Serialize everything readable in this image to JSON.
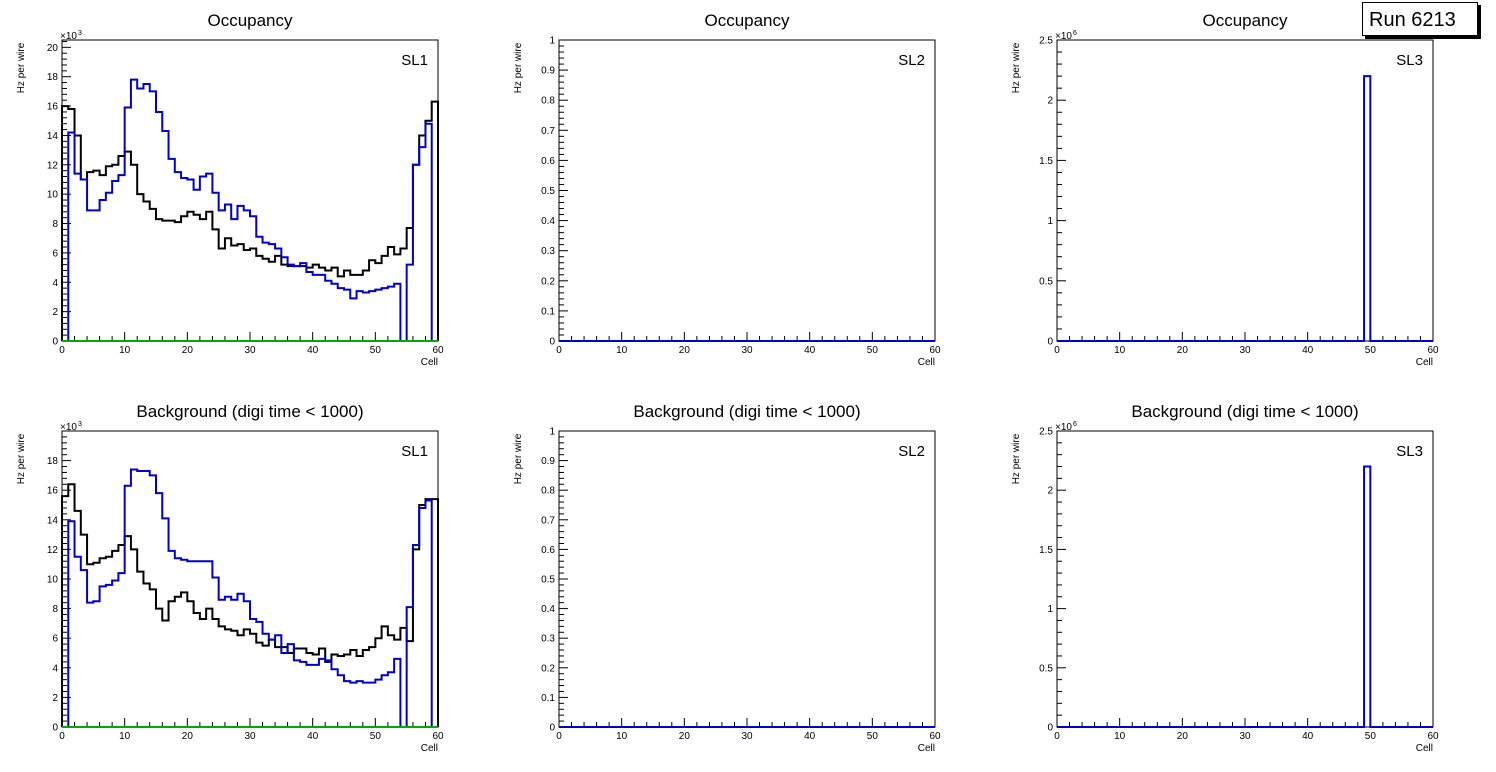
{
  "run_label": "Run 6213",
  "colors": {
    "black": "#000000",
    "blue": "#0000cc",
    "green": "#00aa00"
  },
  "chart_data": [
    {
      "id": "occ-sl1",
      "type": "histogram",
      "title": "Occupancy",
      "label": "SL1",
      "xlabel": "Cell",
      "ylabel": "Hz per wire",
      "xlim": [
        0,
        60
      ],
      "ylim": [
        0,
        20.5
      ],
      "exponent": "3",
      "xticks": [
        0,
        10,
        20,
        30,
        40,
        50,
        60
      ],
      "yticks": [
        0,
        2,
        4,
        6,
        8,
        10,
        12,
        14,
        16,
        18,
        20
      ],
      "series": [
        {
          "name": "black",
          "color": "#000000",
          "xstart": 0,
          "binwidth": 1,
          "values": [
            16,
            15.8,
            14,
            11,
            11.5,
            11.6,
            11.3,
            11.9,
            12,
            12.6,
            12.9,
            12,
            10,
            9.5,
            9,
            8.3,
            8.2,
            8.2,
            8.1,
            8.5,
            8.8,
            8.6,
            8.3,
            8.8,
            7.6,
            6.3,
            7,
            6.5,
            6.6,
            6.2,
            6.3,
            5.8,
            5.6,
            5.4,
            5.8,
            5.2,
            5.1,
            5.1,
            5.1,
            5,
            5.2,
            5,
            4.8,
            5,
            4.4,
            4.8,
            4.5,
            4.5,
            4.8,
            5.5,
            5.3,
            5.8,
            6.4,
            5.9,
            6.3,
            7.7,
            12,
            14,
            15,
            16.3
          ]
        },
        {
          "name": "blue",
          "color": "#0000cc",
          "xstart": 0,
          "binwidth": 1,
          "values": [
            0,
            14.2,
            11.4,
            11,
            8.9,
            8.9,
            9.6,
            10.1,
            10.9,
            11.3,
            15.9,
            17.8,
            17.2,
            17.5,
            17,
            15.6,
            14.3,
            12.4,
            11.5,
            11.1,
            11,
            10.3,
            11.2,
            11.4,
            10.1,
            8.9,
            9.3,
            8.3,
            9.2,
            8.9,
            8.5,
            7.1,
            6.7,
            6.6,
            6.3,
            5.7,
            5.2,
            5.1,
            5.3,
            4.7,
            4.5,
            4.5,
            4.1,
            3.9,
            3.6,
            3.5,
            2.9,
            3.4,
            3.3,
            3.4,
            3.5,
            3.6,
            3.7,
            3.9,
            0,
            5.2,
            12,
            13.2,
            14.8,
            0
          ]
        },
        {
          "name": "green",
          "color": "#00aa00",
          "xstart": 0,
          "binwidth": 1,
          "values": [
            0,
            0,
            0,
            0,
            0,
            0,
            0,
            0,
            0,
            0,
            0,
            0,
            0,
            0,
            0,
            0,
            0,
            0,
            0,
            0,
            0,
            0,
            0,
            0,
            0,
            0,
            0,
            0,
            0,
            0,
            0,
            0,
            0,
            0,
            0,
            0,
            0,
            0,
            0,
            0,
            0,
            0,
            0,
            0,
            0,
            0,
            0,
            0,
            0,
            0,
            0,
            0,
            0,
            0,
            0,
            0,
            0,
            0,
            0,
            0
          ]
        }
      ]
    },
    {
      "id": "occ-sl2",
      "type": "histogram",
      "title": "Occupancy",
      "label": "SL2",
      "xlabel": "Cell",
      "ylabel": "Hz per wire",
      "xlim": [
        0,
        60
      ],
      "ylim": [
        0,
        1
      ],
      "exponent": "",
      "xticks": [
        0,
        10,
        20,
        30,
        40,
        50,
        60
      ],
      "yticks": [
        0,
        0.1,
        0.2,
        0.3,
        0.4,
        0.5,
        0.6,
        0.7,
        0.8,
        0.9,
        1
      ],
      "series": [
        {
          "name": "blue",
          "color": "#0000cc",
          "xstart": 0,
          "binwidth": 1,
          "values": [
            0,
            0,
            0,
            0,
            0,
            0,
            0,
            0,
            0,
            0,
            0,
            0,
            0,
            0,
            0,
            0,
            0,
            0,
            0,
            0,
            0,
            0,
            0,
            0,
            0,
            0,
            0,
            0,
            0,
            0,
            0,
            0,
            0,
            0,
            0,
            0,
            0,
            0,
            0,
            0,
            0,
            0,
            0,
            0,
            0,
            0,
            0,
            0,
            0,
            0,
            0,
            0,
            0,
            0,
            0,
            0,
            0,
            0,
            0,
            0
          ]
        }
      ]
    },
    {
      "id": "occ-sl3",
      "type": "histogram",
      "title": "Occupancy",
      "label": "SL3",
      "xlabel": "Cell",
      "ylabel": "Hz per wire",
      "xlim": [
        0,
        60
      ],
      "ylim": [
        0,
        2.5
      ],
      "exponent": "6",
      "xticks": [
        0,
        10,
        20,
        30,
        40,
        50,
        60
      ],
      "yticks": [
        0,
        0.5,
        1,
        1.5,
        2,
        2.5
      ],
      "series": [
        {
          "name": "blue",
          "color": "#0000cc",
          "xstart": 0,
          "binwidth": 1,
          "values": [
            0,
            0,
            0,
            0,
            0,
            0,
            0,
            0,
            0,
            0,
            0,
            0,
            0,
            0,
            0,
            0,
            0,
            0,
            0,
            0,
            0,
            0,
            0,
            0,
            0,
            0,
            0,
            0,
            0,
            0,
            0,
            0,
            0,
            0,
            0,
            0,
            0,
            0,
            0,
            0,
            0,
            0,
            0,
            0,
            0,
            0,
            0,
            0,
            0,
            2.2,
            0,
            0,
            0,
            0,
            0,
            0,
            0,
            0,
            0,
            0
          ]
        }
      ]
    },
    {
      "id": "bkg-sl1",
      "type": "histogram",
      "title": "Background (digi time < 1000)",
      "label": "SL1",
      "xlabel": "Cell",
      "ylabel": "Hz per wire",
      "xlim": [
        0,
        60
      ],
      "ylim": [
        0,
        20
      ],
      "exponent": "3",
      "xticks": [
        0,
        10,
        20,
        30,
        40,
        50,
        60
      ],
      "yticks": [
        0,
        2,
        4,
        6,
        8,
        10,
        12,
        14,
        16,
        18
      ],
      "series": [
        {
          "name": "black",
          "color": "#000000",
          "xstart": 0,
          "binwidth": 1,
          "values": [
            15.6,
            16.4,
            14.6,
            13,
            11,
            11.1,
            11.4,
            11.5,
            11.9,
            12.3,
            12.9,
            12,
            10.5,
            9.7,
            9.3,
            8,
            7.2,
            8.5,
            8.8,
            9.1,
            8.5,
            7.7,
            7.3,
            8,
            7.3,
            6.8,
            6.6,
            6.5,
            6.2,
            6.6,
            6.3,
            5.7,
            5.5,
            5.9,
            5.4,
            5.4,
            5,
            5.3,
            5.3,
            5,
            4.9,
            5.3,
            4.4,
            4.9,
            4.8,
            4.9,
            5.2,
            4.8,
            5.2,
            5.4,
            6,
            6.8,
            6.2,
            5.9,
            6.7,
            5.8,
            12,
            15,
            15.4,
            15.4
          ]
        },
        {
          "name": "blue",
          "color": "#0000cc",
          "xstart": 0,
          "binwidth": 1,
          "values": [
            0,
            13.9,
            11.5,
            10.6,
            8.4,
            8.5,
            9.5,
            9.6,
            9.9,
            10.4,
            16.3,
            17.4,
            17.3,
            17.3,
            17,
            15.8,
            14.1,
            11.9,
            11.4,
            11.3,
            11.2,
            11.2,
            11.2,
            11.2,
            10.1,
            8.6,
            8.8,
            8.6,
            9,
            8.5,
            7.3,
            7.1,
            6.3,
            5.9,
            6.2,
            5,
            5.6,
            4.5,
            4.4,
            4.2,
            4.2,
            4.6,
            4.5,
            3.9,
            3.5,
            3.1,
            3,
            3.1,
            3,
            3,
            3.2,
            3.5,
            3.7,
            4.6,
            0,
            8.1,
            12.3,
            14.8,
            15.3,
            0
          ]
        },
        {
          "name": "green",
          "color": "#00aa00",
          "xstart": 0,
          "binwidth": 1,
          "values": [
            0,
            0,
            0,
            0,
            0,
            0,
            0,
            0,
            0,
            0,
            0,
            0,
            0,
            0,
            0,
            0,
            0,
            0,
            0,
            0,
            0,
            0,
            0,
            0,
            0,
            0,
            0,
            0,
            0,
            0,
            0,
            0,
            0,
            0,
            0,
            0,
            0,
            0,
            0,
            0,
            0,
            0,
            0,
            0,
            0,
            0,
            0,
            0,
            0,
            0,
            0,
            0,
            0,
            0,
            0,
            0,
            0,
            0,
            0,
            0
          ]
        }
      ]
    },
    {
      "id": "bkg-sl2",
      "type": "histogram",
      "title": "Background (digi time < 1000)",
      "label": "SL2",
      "xlabel": "Cell",
      "ylabel": "Hz per wire",
      "xlim": [
        0,
        60
      ],
      "ylim": [
        0,
        1
      ],
      "exponent": "",
      "xticks": [
        0,
        10,
        20,
        30,
        40,
        50,
        60
      ],
      "yticks": [
        0,
        0.1,
        0.2,
        0.3,
        0.4,
        0.5,
        0.6,
        0.7,
        0.8,
        0.9,
        1
      ],
      "series": [
        {
          "name": "blue",
          "color": "#0000cc",
          "xstart": 0,
          "binwidth": 1,
          "values": [
            0,
            0,
            0,
            0,
            0,
            0,
            0,
            0,
            0,
            0,
            0,
            0,
            0,
            0,
            0,
            0,
            0,
            0,
            0,
            0,
            0,
            0,
            0,
            0,
            0,
            0,
            0,
            0,
            0,
            0,
            0,
            0,
            0,
            0,
            0,
            0,
            0,
            0,
            0,
            0,
            0,
            0,
            0,
            0,
            0,
            0,
            0,
            0,
            0,
            0,
            0,
            0,
            0,
            0,
            0,
            0,
            0,
            0,
            0,
            0
          ]
        }
      ]
    },
    {
      "id": "bkg-sl3",
      "type": "histogram",
      "title": "Background (digi time < 1000)",
      "label": "SL3",
      "xlabel": "Cell",
      "ylabel": "Hz per wire",
      "xlim": [
        0,
        60
      ],
      "ylim": [
        0,
        2.5
      ],
      "exponent": "6",
      "xticks": [
        0,
        10,
        20,
        30,
        40,
        50,
        60
      ],
      "yticks": [
        0,
        0.5,
        1,
        1.5,
        2,
        2.5
      ],
      "series": [
        {
          "name": "blue",
          "color": "#0000cc",
          "xstart": 0,
          "binwidth": 1,
          "values": [
            0,
            0,
            0,
            0,
            0,
            0,
            0,
            0,
            0,
            0,
            0,
            0,
            0,
            0,
            0,
            0,
            0,
            0,
            0,
            0,
            0,
            0,
            0,
            0,
            0,
            0,
            0,
            0,
            0,
            0,
            0,
            0,
            0,
            0,
            0,
            0,
            0,
            0,
            0,
            0,
            0,
            0,
            0,
            0,
            0,
            0,
            0,
            0,
            0,
            2.2,
            0,
            0,
            0,
            0,
            0,
            0,
            0,
            0,
            0,
            0
          ]
        }
      ]
    }
  ]
}
